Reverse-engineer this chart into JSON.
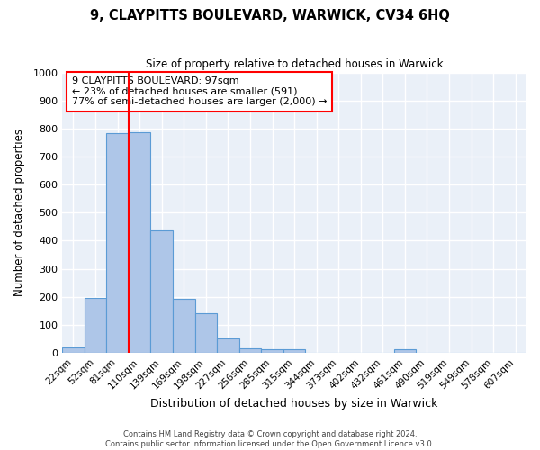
{
  "title": "9, CLAYPITTS BOULEVARD, WARWICK, CV34 6HQ",
  "subtitle": "Size of property relative to detached houses in Warwick",
  "xlabel": "Distribution of detached houses by size in Warwick",
  "ylabel": "Number of detached properties",
  "bin_labels": [
    "22sqm",
    "52sqm",
    "81sqm",
    "110sqm",
    "139sqm",
    "169sqm",
    "198sqm",
    "227sqm",
    "256sqm",
    "285sqm",
    "315sqm",
    "344sqm",
    "373sqm",
    "402sqm",
    "432sqm",
    "461sqm",
    "490sqm",
    "519sqm",
    "549sqm",
    "578sqm",
    "607sqm"
  ],
  "bar_heights": [
    18,
    195,
    783,
    788,
    435,
    193,
    140,
    50,
    15,
    12,
    12,
    0,
    0,
    0,
    0,
    12,
    0,
    0,
    0,
    0,
    0
  ],
  "bar_color": "#aec6e8",
  "bar_edge_color": "#5b9bd5",
  "annotation_text": "9 CLAYPITTS BOULEVARD: 97sqm\n← 23% of detached houses are smaller (591)\n77% of semi-detached houses are larger (2,000) →",
  "annotation_box_color": "white",
  "annotation_box_edge_color": "red",
  "vline_color": "red",
  "ylim": [
    0,
    1000
  ],
  "yticks": [
    0,
    100,
    200,
    300,
    400,
    500,
    600,
    700,
    800,
    900,
    1000
  ],
  "bg_color": "#eaf0f8",
  "grid_color": "white",
  "footer_line1": "Contains HM Land Registry data © Crown copyright and database right 2024.",
  "footer_line2": "Contains public sector information licensed under the Open Government Licence v3.0."
}
